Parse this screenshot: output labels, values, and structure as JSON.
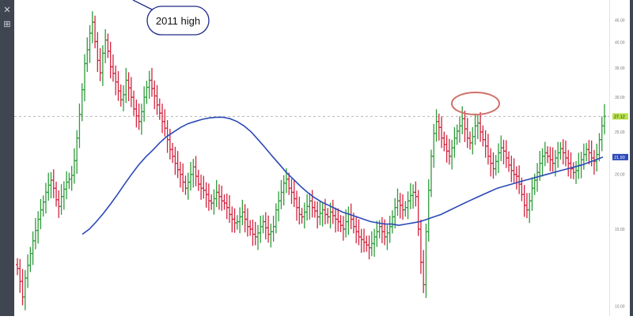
{
  "toolbar": {
    "tools": [
      {
        "name": "crosshair-icon",
        "glyph": "✕"
      },
      {
        "name": "layout-grid-icon",
        "glyph": "⊞"
      }
    ]
  },
  "annotation": {
    "callout_text": "2011 high",
    "circle_color": "#d0706a"
  },
  "chart_data": {
    "type": "bar",
    "style": "ohlc",
    "scale": "log",
    "ylim": [
      9.5,
      50
    ],
    "yticks": [
      "45.00",
      "40.00",
      "35.00",
      "30.00",
      "25.00",
      "20.00",
      "15.00",
      "10.00"
    ],
    "ytick_values": [
      45,
      40,
      35,
      30,
      25,
      20,
      15,
      10
    ],
    "last_price_label": "27.12",
    "last_price": 27.12,
    "ma_label": "21.90",
    "ma_value": 21.9,
    "colors": {
      "up": "#2e9b3a",
      "down": "#d2243f",
      "ma": "#2a49b8",
      "price_line": "#b8b8b8",
      "price_tag": "#b8e24a",
      "ma_tag": "#2a49b8"
    },
    "grid": false,
    "ma_series": [
      14.6,
      15.0,
      15.6,
      16.3,
      17.1,
      18.0,
      19.0,
      20.0,
      21.0,
      21.9,
      22.7,
      23.6,
      24.4,
      25.0,
      25.6,
      26.1,
      26.4,
      26.7,
      26.9,
      27.0,
      27.0,
      26.8,
      26.4,
      25.8,
      25.0,
      24.0,
      23.0,
      22.0,
      21.1,
      20.2,
      19.5,
      18.8,
      18.2,
      17.7,
      17.3,
      17.0,
      16.7,
      16.4,
      16.2,
      16.0,
      15.8,
      15.6,
      15.5,
      15.4,
      15.4,
      15.3,
      15.4,
      15.5,
      15.6,
      15.8,
      16.0,
      16.2,
      16.5,
      16.8,
      17.1,
      17.4,
      17.7,
      18.0,
      18.3,
      18.6,
      18.8,
      19.0,
      19.2,
      19.4,
      19.6,
      19.8,
      20.0,
      20.2,
      20.4,
      20.6,
      20.8,
      21.0,
      21.3,
      21.6,
      21.9
    ],
    "close_series": [
      12.2,
      11.4,
      10.5,
      11.6,
      12.4,
      13.2,
      14.1,
      14.9,
      15.8,
      16.6,
      17.3,
      18.2,
      18.9,
      19.4,
      18.6,
      17.5,
      16.9,
      17.8,
      18.5,
      19.2,
      19.5,
      19.9,
      21.5,
      24.2,
      27.4,
      31.2,
      35.8,
      38.5,
      42.0,
      44.5,
      40.2,
      36.4,
      34.1,
      37.8,
      40.5,
      38.2,
      35.2,
      34.0,
      32.5,
      31.0,
      29.6,
      30.4,
      32.8,
      31.5,
      30.0,
      28.2,
      27.2,
      26.4,
      27.8,
      30.0,
      31.6,
      32.8,
      31.4,
      30.2,
      28.8,
      27.6,
      26.4,
      25.5,
      24.0,
      22.8,
      22.0,
      21.2,
      20.5,
      20.0,
      19.2,
      18.6,
      19.2,
      20.0,
      20.8,
      19.8,
      19.0,
      18.6,
      18.4,
      18.0,
      17.4,
      17.2,
      17.6,
      18.2,
      17.8,
      17.4,
      17.2,
      16.8,
      16.2,
      15.8,
      15.5,
      15.6,
      16.0,
      16.4,
      15.8,
      15.2,
      15.0,
      14.6,
      14.4,
      14.7,
      15.2,
      15.6,
      15.1,
      14.6,
      14.8,
      15.2,
      16.6,
      17.4,
      18.2,
      19.1,
      19.5,
      18.6,
      18.2,
      17.6,
      16.8,
      16.2,
      16.0,
      16.4,
      16.9,
      17.4,
      16.8,
      16.5,
      16.0,
      16.3,
      16.6,
      16.2,
      16.0,
      16.4,
      16.1,
      15.8,
      15.6,
      15.3,
      15.0,
      15.6,
      16.2,
      15.8,
      15.2,
      14.8,
      14.4,
      14.2,
      14.0,
      13.8,
      13.6,
      13.9,
      14.4,
      14.8,
      15.2,
      14.8,
      14.4,
      14.7,
      15.2,
      16.0,
      16.8,
      17.4,
      17.0,
      16.6,
      16.8,
      17.4,
      17.9,
      18.2,
      17.8,
      15.0,
      12.6,
      11.2,
      14.8,
      18.4,
      22.0,
      24.8,
      26.4,
      25.6,
      24.2,
      23.4,
      22.6,
      22.0,
      23.0,
      24.2,
      25.1,
      25.8,
      26.8,
      25.4,
      24.2,
      23.6,
      24.4,
      25.8,
      26.2,
      25.0,
      24.0,
      23.2,
      22.0,
      21.2,
      20.6,
      21.4,
      22.4,
      23.0,
      22.6,
      21.8,
      21.0,
      20.4,
      20.0,
      19.8,
      19.0,
      18.0,
      17.0,
      16.6,
      17.4,
      18.6,
      19.4,
      20.2,
      21.2,
      22.0,
      22.4,
      22.0,
      21.6,
      21.2,
      21.8,
      22.4,
      22.9,
      22.4,
      21.8,
      21.2,
      20.6,
      20.2,
      20.4,
      21.0,
      21.6,
      22.2,
      22.8,
      22.4,
      21.8,
      21.4,
      22.2,
      24.0,
      25.8,
      27.12
    ]
  }
}
